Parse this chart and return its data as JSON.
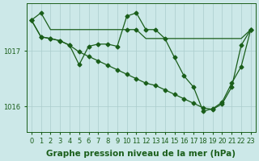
{
  "background_color": "#cce8e8",
  "grid_color": "#aacccc",
  "line_color": "#1a5e1a",
  "title": "Graphe pression niveau de la mer (hPa)",
  "tick_fontsize": 6.0,
  "title_fontsize": 7.5,
  "xlim_min": -0.5,
  "xlim_max": 23.5,
  "ylim_min": 1015.55,
  "ylim_max": 1017.85,
  "yticks": [
    1016,
    1017
  ],
  "xticks": [
    0,
    1,
    2,
    3,
    4,
    5,
    6,
    7,
    8,
    9,
    10,
    11,
    12,
    13,
    14,
    15,
    16,
    17,
    18,
    19,
    20,
    21,
    22,
    23
  ],
  "series": [
    {
      "x": [
        0,
        1,
        2,
        3,
        4,
        5,
        6,
        7,
        8,
        9,
        10,
        11,
        12,
        13,
        14,
        15,
        16,
        17,
        18,
        19,
        20,
        21,
        22,
        23
      ],
      "y": [
        1017.55,
        1017.68,
        1017.38,
        1017.38,
        1017.38,
        1017.38,
        1017.38,
        1017.38,
        1017.38,
        1017.38,
        1017.38,
        1017.38,
        1017.22,
        1017.22,
        1017.22,
        1017.22,
        1017.22,
        1017.22,
        1017.22,
        1017.22,
        1017.22,
        1017.22,
        1017.22,
        1017.38
      ],
      "marker": "D",
      "markersize": 2.5,
      "linewidth": 0.9,
      "has_markers_at": [
        0,
        1,
        10,
        11,
        23
      ]
    },
    {
      "x": [
        0,
        1,
        2,
        3,
        4,
        5,
        6,
        7,
        8,
        9,
        10,
        11,
        12,
        13,
        14,
        15,
        16,
        17,
        18,
        19,
        20,
        21,
        22,
        23
      ],
      "y": [
        1017.55,
        1017.25,
        1017.22,
        1017.18,
        1017.1,
        1016.98,
        1016.9,
        1016.82,
        1016.74,
        1016.66,
        1016.58,
        1016.5,
        1016.42,
        1016.38,
        1016.3,
        1016.22,
        1016.14,
        1016.06,
        1015.98,
        1015.95,
        1016.05,
        1016.35,
        1017.1,
        1017.38
      ],
      "marker": "D",
      "markersize": 2.5,
      "linewidth": 0.9,
      "has_markers_at": [
        0,
        1,
        2,
        3,
        4,
        5,
        6,
        7,
        8,
        9,
        10,
        11,
        12,
        13,
        14,
        15,
        16,
        17,
        18,
        19,
        20,
        21,
        22,
        23
      ]
    },
    {
      "x": [
        0,
        1,
        2,
        3,
        4,
        5,
        6,
        7,
        8,
        9,
        10,
        11,
        12,
        13,
        14,
        15,
        16,
        17,
        18,
        19,
        20,
        21,
        22,
        23
      ],
      "y": [
        1017.55,
        1017.25,
        1017.22,
        1017.18,
        1017.1,
        1016.75,
        1017.08,
        1017.12,
        1017.12,
        1017.08,
        1017.62,
        1017.68,
        1017.38,
        1017.38,
        1017.22,
        1016.88,
        1016.55,
        1016.35,
        1015.92,
        1015.96,
        1016.08,
        1016.42,
        1016.72,
        1017.38
      ],
      "marker": "D",
      "markersize": 2.5,
      "linewidth": 0.9,
      "has_markers_at": [
        0,
        1,
        2,
        3,
        4,
        5,
        6,
        7,
        8,
        9,
        10,
        11,
        12,
        13,
        14,
        15,
        16,
        17,
        18,
        19,
        20,
        21,
        22,
        23
      ]
    }
  ]
}
